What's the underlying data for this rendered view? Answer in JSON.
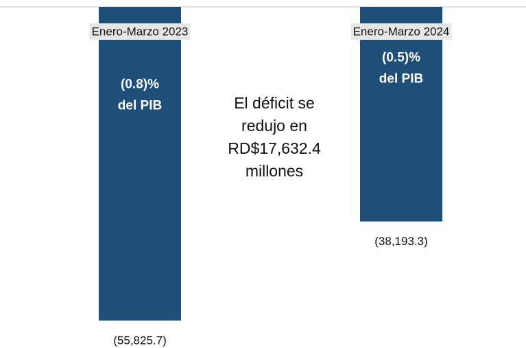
{
  "chart_data": {
    "type": "bar",
    "categories": [
      "Enero-Marzo 2023",
      "Enero-Marzo 2024"
    ],
    "values": [
      -55825.7,
      -38193.3
    ],
    "value_labels": [
      "(55,825.7)",
      "(38,193.3)"
    ],
    "bar_annotations": [
      [
        "(0.8)%",
        "del PIB"
      ],
      [
        "(0.5)%",
        "del PIB"
      ]
    ],
    "annotation": [
      "El déficit se",
      "redujo en",
      "RD$17,632.4",
      "millones"
    ],
    "color": "#1f4e79"
  }
}
